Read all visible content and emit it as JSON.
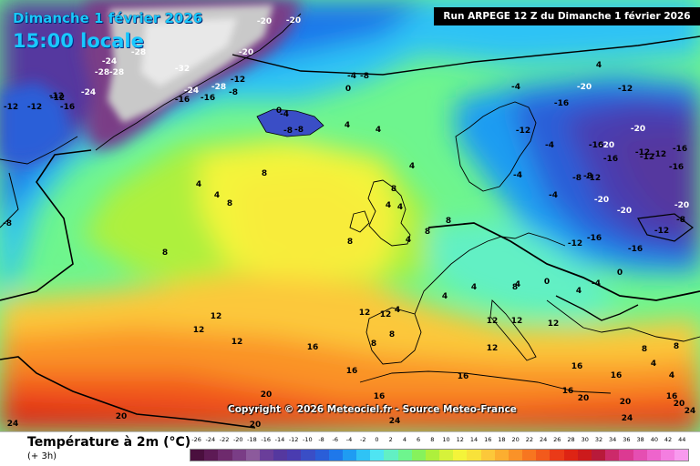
{
  "overlay": {
    "date_line": "Dimanche 1 février 2026",
    "time_line": "15:00 locale"
  },
  "header": {
    "run_info": "Run ARPEGE 12 Z du Dimanche 1 février 2026"
  },
  "credit": "Copyright © 2026 Meteociel.fr - Source Meteo-France",
  "footer": {
    "parameter": "Température à 2m (°C)",
    "step": "(+ 3h)"
  },
  "legend": {
    "labels": [
      "-26",
      "-24",
      "-22",
      "-20",
      "-18",
      "-16",
      "-14",
      "-12",
      "-10",
      "-8",
      "-6",
      "-4",
      "-2",
      "0",
      "2",
      "4",
      "6",
      "8",
      "10",
      "12",
      "14",
      "16",
      "18",
      "20",
      "22",
      "24",
      "26",
      "28",
      "30",
      "32",
      "34",
      "36",
      "38",
      "40",
      "42",
      "44"
    ],
    "colors": [
      "#4a0f3e",
      "#5d1a55",
      "#6e2a6d",
      "#7a3d86",
      "#8c5a9c",
      "#6a3e9a",
      "#55389f",
      "#4a3cb0",
      "#3a4ec6",
      "#2a5ed8",
      "#1f78ea",
      "#1f9cf2",
      "#2fc3f5",
      "#4fe4f2",
      "#62f0c4",
      "#6ef58e",
      "#86f25c",
      "#aef03c",
      "#d6f23a",
      "#f4f43a",
      "#f8e23a",
      "#fcc83a",
      "#fcae30",
      "#fa9228",
      "#f77620",
      "#f25a1c",
      "#ea3a18",
      "#de2414",
      "#cc1a1c",
      "#b81a3a",
      "#cc2a6a",
      "#dc3a92",
      "#e54eb2",
      "#ee64cc",
      "#f47ee0",
      "#f89aee"
    ]
  },
  "map_labels": [
    {
      "text": "-20"
    },
    {
      "text": "-20"
    },
    {
      "text": "-24"
    },
    {
      "text": "-28"
    },
    {
      "text": "-32"
    },
    {
      "text": "-28"
    },
    {
      "text": "-16"
    },
    {
      "text": "-24"
    },
    {
      "text": "-12"
    },
    {
      "text": "-12"
    },
    {
      "text": "-16"
    },
    {
      "text": "-12"
    },
    {
      "text": "-24"
    },
    {
      "text": "-28"
    },
    {
      "text": "-28"
    },
    {
      "text": "-20"
    },
    {
      "text": "-16"
    },
    {
      "text": "-12"
    },
    {
      "text": "-12"
    },
    {
      "text": "-8"
    },
    {
      "text": "-8"
    },
    {
      "text": "-4"
    },
    {
      "text": "-8"
    },
    {
      "text": "0"
    },
    {
      "text": "-4"
    },
    {
      "text": "-8"
    },
    {
      "text": "-8"
    },
    {
      "text": "0"
    },
    {
      "text": "-4"
    },
    {
      "text": "4"
    },
    {
      "text": "4"
    },
    {
      "text": "4"
    },
    {
      "text": "4"
    },
    {
      "text": "4"
    },
    {
      "text": "4"
    },
    {
      "text": "8"
    },
    {
      "text": "8"
    },
    {
      "text": "8"
    },
    {
      "text": "8"
    },
    {
      "text": "4"
    },
    {
      "text": "4"
    },
    {
      "text": "8"
    },
    {
      "text": "4"
    },
    {
      "text": "8"
    },
    {
      "text": "8"
    },
    {
      "text": "4"
    },
    {
      "text": "4"
    },
    {
      "text": "8"
    },
    {
      "text": "12"
    },
    {
      "text": "12"
    },
    {
      "text": "12"
    },
    {
      "text": "12"
    },
    {
      "text": "12"
    },
    {
      "text": "12"
    },
    {
      "text": "8"
    },
    {
      "text": "16"
    },
    {
      "text": "16"
    },
    {
      "text": "16"
    },
    {
      "text": "16"
    },
    {
      "text": "16"
    },
    {
      "text": "16"
    },
    {
      "text": "20"
    },
    {
      "text": "20"
    },
    {
      "text": "24"
    },
    {
      "text": "24"
    },
    {
      "text": "20"
    },
    {
      "text": "24"
    },
    {
      "text": "20"
    },
    {
      "text": "20"
    },
    {
      "text": "24"
    },
    {
      "text": "-4"
    },
    {
      "text": "-20"
    },
    {
      "text": "-12"
    },
    {
      "text": "-16"
    },
    {
      "text": "-20"
    },
    {
      "text": "-20"
    },
    {
      "text": "-16"
    },
    {
      "text": "-12"
    },
    {
      "text": "-4"
    },
    {
      "text": "-8"
    },
    {
      "text": "-12"
    },
    {
      "text": "-20"
    },
    {
      "text": "-20"
    },
    {
      "text": "-12"
    },
    {
      "text": "-16"
    },
    {
      "text": "-16"
    },
    {
      "text": "-12"
    },
    {
      "text": "-8"
    },
    {
      "text": "-12"
    },
    {
      "text": "-16"
    },
    {
      "text": "-20"
    },
    {
      "text": "-12"
    },
    {
      "text": "-12"
    },
    {
      "text": "-16"
    },
    {
      "text": "-16"
    },
    {
      "text": "-4"
    },
    {
      "text": "-8"
    },
    {
      "text": "0"
    },
    {
      "text": "4"
    },
    {
      "text": "4"
    },
    {
      "text": "0"
    },
    {
      "text": "-4"
    },
    {
      "text": "8"
    },
    {
      "text": "8"
    },
    {
      "text": "4"
    },
    {
      "text": "4"
    },
    {
      "text": "12"
    },
    {
      "text": "12"
    },
    {
      "text": "16"
    },
    {
      "text": "20"
    },
    {
      "text": "8"
    },
    {
      "text": "12"
    },
    {
      "text": "16"
    },
    {
      "text": "4"
    }
  ]
}
